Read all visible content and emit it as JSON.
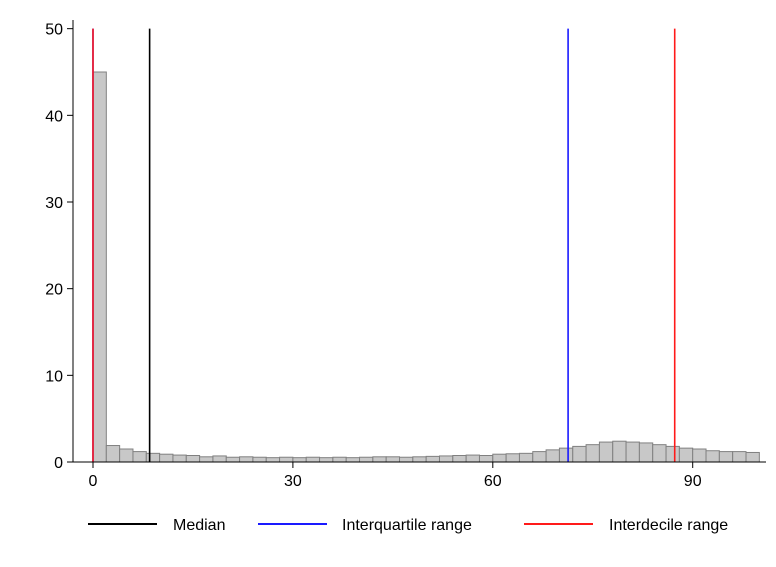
{
  "chart_data": {
    "type": "bar",
    "title": "",
    "xlabel": "",
    "ylabel": "",
    "xlim": [
      -3,
      101
    ],
    "ylim": [
      0,
      51
    ],
    "grid": false,
    "x_ticks": [
      0,
      30,
      60,
      90
    ],
    "y_ticks": [
      0,
      10,
      20,
      30,
      40,
      50
    ],
    "bin_width": 2,
    "bin_start": 0,
    "values": [
      45,
      1.9,
      1.5,
      1.2,
      1.0,
      0.9,
      0.8,
      0.75,
      0.6,
      0.7,
      0.55,
      0.6,
      0.55,
      0.5,
      0.55,
      0.5,
      0.55,
      0.5,
      0.55,
      0.5,
      0.55,
      0.6,
      0.6,
      0.55,
      0.6,
      0.65,
      0.7,
      0.75,
      0.8,
      0.75,
      0.9,
      0.95,
      1.0,
      1.2,
      1.4,
      1.6,
      1.8,
      2.0,
      2.3,
      2.4,
      2.3,
      2.2,
      2.0,
      1.8,
      1.6,
      1.5,
      1.3,
      1.2,
      1.2,
      1.1
    ],
    "bar_color": "#c8c8c8",
    "bar_edge_color": "#808080",
    "reference_lines": [
      {
        "name": "Median",
        "x": 8.5,
        "color": "#000000"
      },
      {
        "name": "Interquartile range",
        "x": 0,
        "color": "#1a1aff"
      },
      {
        "name": "Interquartile range",
        "x": 71.3,
        "color": "#1a1aff"
      },
      {
        "name": "Interdecile range",
        "x": 0,
        "color": "#ff1a1a"
      },
      {
        "name": "Interdecile range",
        "x": 87.3,
        "color": "#ff1a1a"
      }
    ],
    "legend": {
      "placement": "bottom",
      "entries": [
        {
          "label": "Median",
          "color": "#000000"
        },
        {
          "label": "Interquartile range",
          "color": "#1a1aff"
        },
        {
          "label": "Interdecile range",
          "color": "#ff1a1a"
        }
      ]
    }
  }
}
